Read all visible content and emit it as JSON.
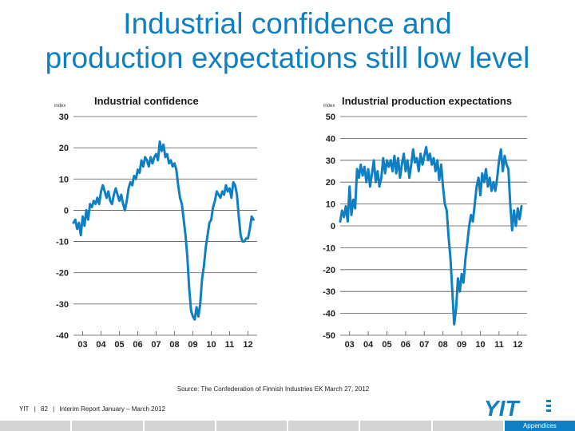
{
  "slide": {
    "title_line1": "Industrial confidence and",
    "title_line2": "production expectations still low level",
    "source": "Source: The Confederation of Finnish Industries EK March 27, 2012",
    "footer": {
      "company": "YIT",
      "page": "82",
      "report": "Interim Report January – March 2012"
    },
    "logo_text": "YIT",
    "nav_active_label": "Appendices",
    "colors": {
      "title": "#0f7fc4",
      "series": "#0f7fc4",
      "bar": "#d4d4d4"
    }
  },
  "chart_data": [
    {
      "type": "line",
      "title": "Industrial confidence",
      "ylabel": "index",
      "ylim": [
        -40,
        30
      ],
      "yticks": [
        30,
        20,
        10,
        0,
        -10,
        -20,
        -30,
        -40
      ],
      "xlim": [
        2002.5,
        2012.5
      ],
      "xticks": [
        2003,
        2004,
        2005,
        2006,
        2007,
        2008,
        2009,
        2010,
        2011,
        2012
      ],
      "xtick_labels": [
        "03",
        "04",
        "05",
        "06",
        "07",
        "08",
        "09",
        "10",
        "11",
        "12"
      ],
      "grid": "horizontal",
      "series": [
        {
          "values": [
            [
              2002.5,
              -4
            ],
            [
              2002.6,
              -3
            ],
            [
              2002.7,
              -6
            ],
            [
              2002.8,
              -4
            ],
            [
              2002.9,
              -8
            ],
            [
              2003.0,
              -2
            ],
            [
              2003.1,
              -5
            ],
            [
              2003.2,
              0
            ],
            [
              2003.3,
              -3
            ],
            [
              2003.4,
              2
            ],
            [
              2003.5,
              1
            ],
            [
              2003.6,
              3
            ],
            [
              2003.7,
              2
            ],
            [
              2003.8,
              4
            ],
            [
              2003.9,
              2
            ],
            [
              2004.0,
              6
            ],
            [
              2004.1,
              8
            ],
            [
              2004.2,
              6
            ],
            [
              2004.3,
              4
            ],
            [
              2004.4,
              6
            ],
            [
              2004.5,
              3
            ],
            [
              2004.6,
              2
            ],
            [
              2004.7,
              5
            ],
            [
              2004.8,
              7
            ],
            [
              2004.9,
              5
            ],
            [
              2005.0,
              3
            ],
            [
              2005.1,
              5
            ],
            [
              2005.2,
              2
            ],
            [
              2005.3,
              0
            ],
            [
              2005.4,
              3
            ],
            [
              2005.5,
              7
            ],
            [
              2005.6,
              9
            ],
            [
              2005.7,
              8
            ],
            [
              2005.8,
              11
            ],
            [
              2005.9,
              10
            ],
            [
              2006.0,
              13
            ],
            [
              2006.1,
              12
            ],
            [
              2006.2,
              16
            ],
            [
              2006.3,
              14
            ],
            [
              2006.4,
              17
            ],
            [
              2006.5,
              16
            ],
            [
              2006.6,
              14
            ],
            [
              2006.7,
              17
            ],
            [
              2006.8,
              15
            ],
            [
              2006.9,
              17
            ],
            [
              2007.0,
              18
            ],
            [
              2007.1,
              16
            ],
            [
              2007.2,
              22
            ],
            [
              2007.3,
              19
            ],
            [
              2007.4,
              21
            ],
            [
              2007.5,
              17
            ],
            [
              2007.6,
              18
            ],
            [
              2007.7,
              15
            ],
            [
              2007.8,
              16
            ],
            [
              2007.9,
              14
            ],
            [
              2008.0,
              15
            ],
            [
              2008.1,
              13
            ],
            [
              2008.2,
              8
            ],
            [
              2008.3,
              4
            ],
            [
              2008.4,
              2
            ],
            [
              2008.5,
              -3
            ],
            [
              2008.6,
              -8
            ],
            [
              2008.7,
              -15
            ],
            [
              2008.8,
              -25
            ],
            [
              2008.9,
              -32
            ],
            [
              2009.0,
              -34
            ],
            [
              2009.1,
              -35
            ],
            [
              2009.2,
              -31
            ],
            [
              2009.3,
              -34
            ],
            [
              2009.4,
              -30
            ],
            [
              2009.5,
              -22
            ],
            [
              2009.6,
              -18
            ],
            [
              2009.7,
              -12
            ],
            [
              2009.8,
              -8
            ],
            [
              2009.9,
              -4
            ],
            [
              2010.0,
              -3
            ],
            [
              2010.1,
              1
            ],
            [
              2010.2,
              3
            ],
            [
              2010.3,
              6
            ],
            [
              2010.4,
              5
            ],
            [
              2010.5,
              4
            ],
            [
              2010.6,
              6
            ],
            [
              2010.7,
              5
            ],
            [
              2010.8,
              8
            ],
            [
              2010.9,
              6
            ],
            [
              2011.0,
              7
            ],
            [
              2011.1,
              4
            ],
            [
              2011.2,
              9
            ],
            [
              2011.3,
              8
            ],
            [
              2011.4,
              5
            ],
            [
              2011.5,
              -2
            ],
            [
              2011.6,
              -8
            ],
            [
              2011.7,
              -10
            ],
            [
              2011.8,
              -10
            ],
            [
              2011.9,
              -9
            ],
            [
              2012.0,
              -9
            ],
            [
              2012.1,
              -6
            ],
            [
              2012.2,
              -2
            ],
            [
              2012.3,
              -3
            ]
          ]
        }
      ]
    },
    {
      "type": "line",
      "title": "Industrial production expectations",
      "ylabel": "index",
      "ylim": [
        -50,
        50
      ],
      "yticks": [
        50,
        40,
        30,
        20,
        10,
        0,
        -10,
        -20,
        -30,
        -40,
        -50
      ],
      "xlim": [
        2002.5,
        2012.5
      ],
      "xticks": [
        2003,
        2004,
        2005,
        2006,
        2007,
        2008,
        2009,
        2010,
        2011,
        2012
      ],
      "xtick_labels": [
        "03",
        "04",
        "05",
        "06",
        "07",
        "08",
        "09",
        "10",
        "11",
        "12"
      ],
      "grid": "horizontal",
      "series": [
        {
          "values": [
            [
              2002.5,
              2
            ],
            [
              2002.6,
              7
            ],
            [
              2002.7,
              4
            ],
            [
              2002.8,
              9
            ],
            [
              2002.9,
              2
            ],
            [
              2003.0,
              18
            ],
            [
              2003.1,
              5
            ],
            [
              2003.2,
              12
            ],
            [
              2003.3,
              8
            ],
            [
              2003.4,
              26
            ],
            [
              2003.5,
              22
            ],
            [
              2003.6,
              28
            ],
            [
              2003.7,
              23
            ],
            [
              2003.8,
              27
            ],
            [
              2003.9,
              20
            ],
            [
              2004.0,
              26
            ],
            [
              2004.1,
              18
            ],
            [
              2004.2,
              24
            ],
            [
              2004.3,
              30
            ],
            [
              2004.4,
              20
            ],
            [
              2004.5,
              25
            ],
            [
              2004.6,
              18
            ],
            [
              2004.7,
              22
            ],
            [
              2004.8,
              31
            ],
            [
              2004.9,
              24
            ],
            [
              2005.0,
              30
            ],
            [
              2005.1,
              27
            ],
            [
              2005.2,
              30
            ],
            [
              2005.3,
              25
            ],
            [
              2005.4,
              32
            ],
            [
              2005.5,
              24
            ],
            [
              2005.6,
              31
            ],
            [
              2005.7,
              22
            ],
            [
              2005.8,
              28
            ],
            [
              2005.9,
              33
            ],
            [
              2006.0,
              25
            ],
            [
              2006.1,
              30
            ],
            [
              2006.2,
              22
            ],
            [
              2006.3,
              28
            ],
            [
              2006.4,
              35
            ],
            [
              2006.5,
              29
            ],
            [
              2006.6,
              31
            ],
            [
              2006.7,
              25
            ],
            [
              2006.8,
              33
            ],
            [
              2006.9,
              28
            ],
            [
              2007.0,
              32
            ],
            [
              2007.1,
              36
            ],
            [
              2007.2,
              30
            ],
            [
              2007.3,
              33
            ],
            [
              2007.4,
              28
            ],
            [
              2007.5,
              31
            ],
            [
              2007.6,
              25
            ],
            [
              2007.7,
              30
            ],
            [
              2007.8,
              21
            ],
            [
              2007.9,
              28
            ],
            [
              2008.0,
              18
            ],
            [
              2008.1,
              10
            ],
            [
              2008.2,
              7
            ],
            [
              2008.3,
              -5
            ],
            [
              2008.4,
              -15
            ],
            [
              2008.5,
              -30
            ],
            [
              2008.6,
              -45
            ],
            [
              2008.7,
              -38
            ],
            [
              2008.8,
              -24
            ],
            [
              2008.9,
              -30
            ],
            [
              2009.0,
              -22
            ],
            [
              2009.1,
              -26
            ],
            [
              2009.2,
              -15
            ],
            [
              2009.3,
              -8
            ],
            [
              2009.4,
              0
            ],
            [
              2009.5,
              5
            ],
            [
              2009.6,
              2
            ],
            [
              2009.7,
              10
            ],
            [
              2009.8,
              18
            ],
            [
              2009.9,
              22
            ],
            [
              2010.0,
              14
            ],
            [
              2010.1,
              24
            ],
            [
              2010.2,
              20
            ],
            [
              2010.3,
              26
            ],
            [
              2010.4,
              18
            ],
            [
              2010.5,
              22
            ],
            [
              2010.6,
              16
            ],
            [
              2010.7,
              20
            ],
            [
              2010.8,
              16
            ],
            [
              2010.9,
              22
            ],
            [
              2011.0,
              30
            ],
            [
              2011.1,
              35
            ],
            [
              2011.2,
              25
            ],
            [
              2011.3,
              32
            ],
            [
              2011.4,
              28
            ],
            [
              2011.5,
              26
            ],
            [
              2011.6,
              10
            ],
            [
              2011.7,
              -2
            ],
            [
              2011.8,
              7
            ],
            [
              2011.9,
              0
            ],
            [
              2012.0,
              8
            ],
            [
              2012.1,
              3
            ],
            [
              2012.2,
              9
            ]
          ]
        }
      ]
    }
  ]
}
